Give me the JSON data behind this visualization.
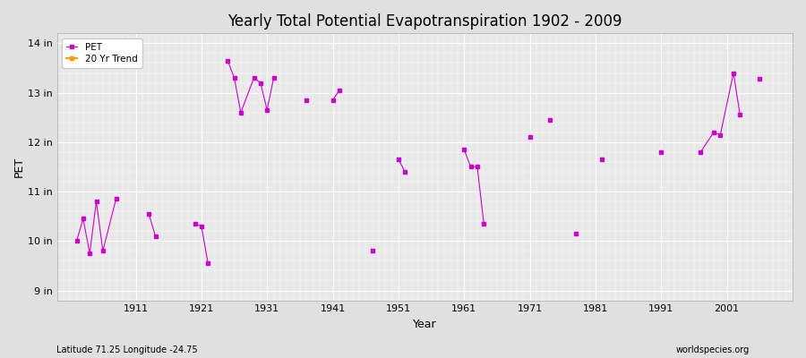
{
  "title": "Yearly Total Potential Evapotranspiration 1902 - 2009",
  "xlabel": "Year",
  "ylabel": "PET",
  "background_color": "#e0e0e0",
  "plot_bg_color": "#e8e8e8",
  "line_color": "#cc00cc",
  "trend_color": "#ff9900",
  "ylim": [
    8.8,
    14.2
  ],
  "xlim": [
    1899,
    2011
  ],
  "yticks": [
    9,
    10,
    11,
    12,
    13,
    14
  ],
  "ytick_labels": [
    "9 in",
    "10 in",
    "11 in",
    "12 in",
    "13 in",
    "14 in"
  ],
  "xticks": [
    1911,
    1921,
    1931,
    1941,
    1951,
    1961,
    1971,
    1981,
    1991,
    2001
  ],
  "subtitle_left": "Latitude 71.25 Longitude -24.75",
  "watermark": "worldspecies.org",
  "pet_data": [
    [
      1902,
      10.0
    ],
    [
      1903,
      10.45
    ],
    [
      1904,
      9.75
    ],
    [
      1905,
      10.8
    ],
    [
      1906,
      9.8
    ],
    [
      1908,
      10.85
    ],
    [
      1913,
      10.55
    ],
    [
      1914,
      10.1
    ],
    [
      1920,
      10.35
    ],
    [
      1921,
      10.3
    ],
    [
      1922,
      9.55
    ],
    [
      1925,
      13.65
    ],
    [
      1926,
      13.3
    ],
    [
      1927,
      12.6
    ],
    [
      1929,
      13.3
    ],
    [
      1930,
      13.2
    ],
    [
      1931,
      12.65
    ],
    [
      1932,
      13.3
    ],
    [
      1937,
      12.85
    ],
    [
      1941,
      12.85
    ],
    [
      1942,
      13.05
    ],
    [
      1947,
      9.8
    ],
    [
      1951,
      11.65
    ],
    [
      1952,
      11.4
    ],
    [
      1961,
      11.85
    ],
    [
      1962,
      11.5
    ],
    [
      1963,
      11.5
    ],
    [
      1964,
      10.35
    ],
    [
      1971,
      12.1
    ],
    [
      1974,
      12.45
    ],
    [
      1978,
      10.15
    ],
    [
      1982,
      11.65
    ],
    [
      1991,
      11.8
    ],
    [
      1997,
      11.8
    ],
    [
      1999,
      12.2
    ],
    [
      2000,
      12.15
    ],
    [
      2002,
      13.4
    ],
    [
      2003,
      12.55
    ],
    [
      2006,
      13.28
    ]
  ]
}
